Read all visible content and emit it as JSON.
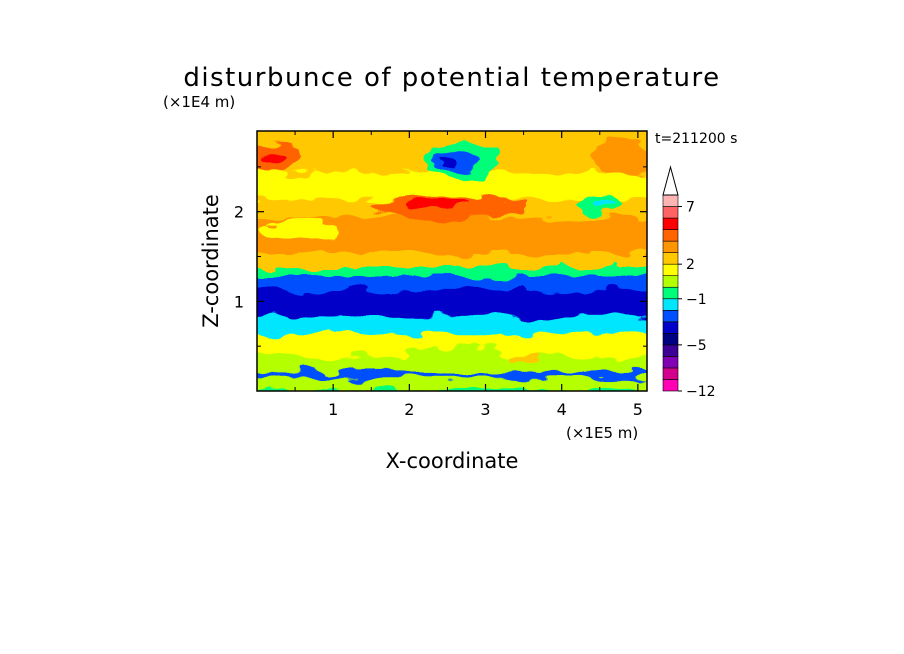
{
  "chart_data": {
    "type": "heatmap",
    "title": "disturbunce of potential temperature",
    "time_label": "t=211200 s",
    "xlabel": "X-coordinate",
    "ylabel": "Z-coordinate",
    "x_unit": "(×1E5 m)",
    "y_unit": "(×1E4 m)",
    "xlim": [
      0,
      5.12
    ],
    "ylim": [
      0,
      2.9
    ],
    "x_ticks": [
      "1",
      "2",
      "3",
      "4",
      "5"
    ],
    "x_tick_values": [
      1,
      2,
      3,
      4,
      5
    ],
    "y_ticks": [
      "1",
      "2"
    ],
    "y_tick_values": [
      1,
      2
    ],
    "colorbar": {
      "colors": [
        "#ff00b4",
        "#d2008c",
        "#8200b4",
        "#3c0096",
        "#000082",
        "#0000c8",
        "#0050ff",
        "#00e6ff",
        "#00ff78",
        "#b4ff00",
        "#ffff00",
        "#ffc800",
        "#ff9600",
        "#ff6400",
        "#ff0000",
        "#ff6464",
        "#ffb4b4"
      ],
      "labels": [
        "−12",
        "−5",
        "−1",
        "2",
        "7"
      ],
      "label_levels": [
        -12,
        -5,
        -1,
        2,
        7
      ],
      "extend": "max"
    },
    "bands": [
      {
        "z": [
          0.0,
          0.08
        ],
        "level": -1
      },
      {
        "z": [
          0.08,
          0.22
        ],
        "level": 0
      },
      {
        "z": [
          0.22,
          0.28
        ],
        "level": -3
      },
      {
        "z": [
          0.28,
          0.45
        ],
        "level": 0
      },
      {
        "z": [
          0.45,
          0.7
        ],
        "level": 1
      },
      {
        "z": [
          0.7,
          0.9
        ],
        "level": -2
      },
      {
        "z": [
          0.9,
          1.2
        ],
        "level": -4
      },
      {
        "z": [
          1.2,
          1.35
        ],
        "level": -3
      },
      {
        "z": [
          1.35,
          1.45
        ],
        "level": -1
      },
      {
        "z": [
          1.45,
          1.6
        ],
        "level": 2
      },
      {
        "z": [
          1.6,
          2.0
        ],
        "level": 3
      },
      {
        "z": [
          2.0,
          2.2
        ],
        "level": 2
      },
      {
        "z": [
          2.2,
          2.5
        ],
        "level": 1
      },
      {
        "z": [
          2.5,
          2.9
        ],
        "level": 2
      }
    ],
    "anomalies": [
      {
        "x": 2.5,
        "z": 2.05,
        "rx": 1.0,
        "rz": 0.14,
        "level": 4
      },
      {
        "x": 2.4,
        "z": 2.1,
        "rx": 0.4,
        "rz": 0.06,
        "level": 5
      },
      {
        "x": 0.15,
        "z": 2.6,
        "rx": 0.4,
        "rz": 0.18,
        "level": 4
      },
      {
        "x": 0.2,
        "z": 2.6,
        "rx": 0.15,
        "rz": 0.06,
        "level": 5
      },
      {
        "x": 2.7,
        "z": 2.55,
        "rx": 0.5,
        "rz": 0.22,
        "level": -1
      },
      {
        "x": 2.6,
        "z": 2.55,
        "rx": 0.3,
        "rz": 0.12,
        "level": -3
      },
      {
        "x": 2.5,
        "z": 2.55,
        "rx": 0.12,
        "rz": 0.05,
        "level": -4
      },
      {
        "x": 4.5,
        "z": 2.08,
        "rx": 0.3,
        "rz": 0.1,
        "level": -1
      },
      {
        "x": 4.55,
        "z": 2.08,
        "rx": 0.15,
        "rz": 0.04,
        "level": -2
      },
      {
        "x": 4.8,
        "z": 2.6,
        "rx": 0.4,
        "rz": 0.2,
        "level": 3
      },
      {
        "x": 0.6,
        "z": 1.8,
        "rx": 0.5,
        "rz": 0.12,
        "level": 1
      },
      {
        "x": 3.5,
        "z": 0.35,
        "rx": 0.2,
        "rz": 0.05,
        "level": 2
      },
      {
        "x": 2.6,
        "z": 0.35,
        "rx": 0.7,
        "rz": 0.15,
        "level": 0
      },
      {
        "x": 1.0,
        "z": 0.55,
        "rx": 0.5,
        "rz": 0.12,
        "level": 1
      }
    ]
  }
}
